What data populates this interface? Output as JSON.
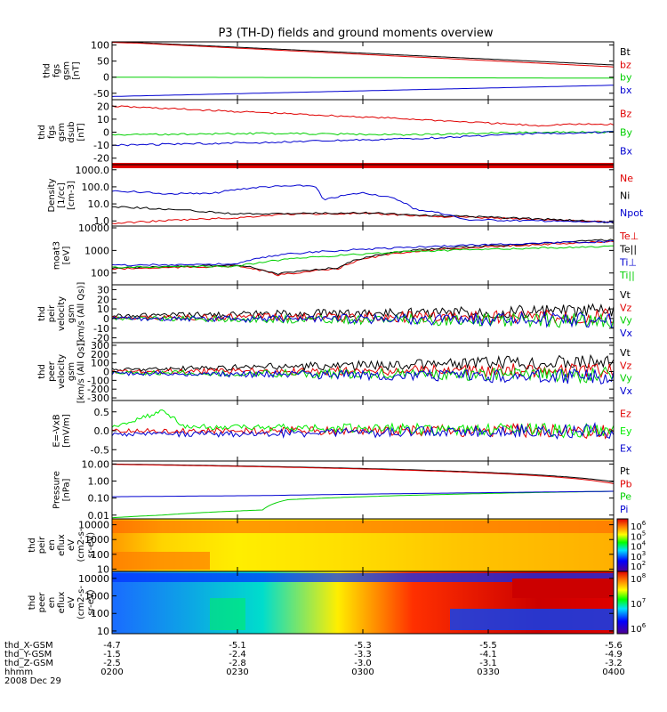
{
  "title": "P3 (TH-D) fields and ground moments overview",
  "time_axis": {
    "start": "0200",
    "end": "0400",
    "date": "2008 Dec 29",
    "tick_labels": [
      "0200",
      "0230",
      "0300",
      "0330",
      "0400"
    ],
    "rows": [
      {
        "label": "thd_X-GSM",
        "values": [
          "-4.7",
          "-5.1",
          "-5.3",
          "-5.5",
          "-5.6"
        ]
      },
      {
        "label": "thd_Y-GSM",
        "values": [
          "-1.5",
          "-2.4",
          "-3.3",
          "-4.1",
          "-4.9"
        ]
      },
      {
        "label": "thd_Z-GSM",
        "values": [
          "-2.5",
          "-2.8",
          "-3.0",
          "-3.1",
          "-3.2"
        ]
      },
      {
        "label": "hhmm",
        "values": []
      }
    ]
  },
  "colors": {
    "black": "#000000",
    "red": "#e00000",
    "green": "#00d000",
    "blue": "#0000d0",
    "lime": "#00ee00"
  },
  "chart_data": [
    {
      "type": "line",
      "ylabel": "thd\nfgs\ngsm\n[nT]",
      "ylim": [
        -70,
        110
      ],
      "yticks": [
        100,
        50,
        0,
        -50
      ],
      "legend": [
        "Bt",
        "bz",
        "by",
        "bx"
      ],
      "series": [
        {
          "name": "Bt",
          "color": "black",
          "x": [
            0,
            0.05,
            1
          ],
          "y": [
            110,
            108,
            38
          ]
        },
        {
          "name": "bz",
          "color": "red",
          "x": [
            0,
            0.05,
            1
          ],
          "y": [
            108,
            106,
            32
          ]
        },
        {
          "name": "by",
          "color": "green",
          "x": [
            0,
            1
          ],
          "y": [
            0,
            -3
          ]
        },
        {
          "name": "bx",
          "color": "blue",
          "x": [
            0,
            1
          ],
          "y": [
            -60,
            -25
          ]
        }
      ]
    },
    {
      "type": "line",
      "ylabel": "thd\nfgs\ngsm\ndsub\n[nT]",
      "ylim": [
        -25,
        25
      ],
      "yticks": [
        20,
        10,
        0,
        -10,
        -20
      ],
      "legend": [
        "Bz",
        "By",
        "Bx"
      ],
      "series": [
        {
          "name": "Bz",
          "color": "red",
          "x": [
            0,
            0.3,
            0.6,
            0.85,
            0.9,
            1
          ],
          "y": [
            20,
            15,
            10,
            5,
            6,
            6
          ]
        },
        {
          "name": "By",
          "color": "green",
          "x": [
            0,
            0.3,
            0.6,
            0.85,
            1
          ],
          "y": [
            -2,
            -1,
            -2,
            0,
            0
          ]
        },
        {
          "name": "Bx",
          "color": "blue",
          "x": [
            0,
            0.3,
            0.6,
            0.85,
            1
          ],
          "y": [
            -10,
            -8,
            -5,
            -1,
            0
          ]
        }
      ]
    },
    {
      "type": "line",
      "ylabel": "Density\n[1/cc]\n[cm-3]",
      "scale": "log",
      "ylim": [
        0.5,
        2000
      ],
      "ytick_labels": [
        "1000.0",
        "100.0",
        "10.0",
        "1.0"
      ],
      "ytick_values": [
        1000,
        100,
        10,
        1
      ],
      "legend": [
        "Ne",
        "Ni",
        "Npot"
      ],
      "series": [
        {
          "name": "Ne",
          "color": "red",
          "x": [
            0,
            0.25,
            0.35,
            0.5,
            0.65,
            1
          ],
          "y": [
            0.7,
            1.5,
            2.5,
            2.7,
            1.8,
            0.8
          ]
        },
        {
          "name": "Ni",
          "color": "black",
          "x": [
            0,
            0.1,
            0.25,
            0.5,
            0.65,
            1
          ],
          "y": [
            7,
            5,
            2.5,
            3,
            2,
            0.8
          ]
        },
        {
          "name": "Npot",
          "color": "blue",
          "x": [
            0,
            0.1,
            0.2,
            0.3,
            0.4,
            0.42,
            0.5,
            0.55,
            0.6,
            0.7,
            1
          ],
          "y": [
            60,
            40,
            40,
            100,
            120,
            15,
            45,
            25,
            5,
            1.2,
            0.8
          ]
        }
      ]
    },
    {
      "type": "line",
      "ylabel": "moat3\n[eV]",
      "scale": "log",
      "ylim": [
        30,
        12000
      ],
      "ytick_labels": [
        "10000",
        "1000",
        "100"
      ],
      "ytick_values": [
        10000,
        1000,
        100
      ],
      "legend": [
        "Te⊥",
        "Te||",
        "Ti⊥",
        "Ti||"
      ],
      "series": [
        {
          "name": "Te⊥",
          "color": "red",
          "x": [
            0,
            0.25,
            0.33,
            0.45,
            0.6,
            0.85,
            1
          ],
          "y": [
            150,
            200,
            80,
            150,
            900,
            1800,
            2500
          ]
        },
        {
          "name": "Te||",
          "color": "black",
          "x": [
            0,
            0.25,
            0.33,
            0.45,
            0.6,
            0.85,
            1
          ],
          "y": [
            170,
            220,
            90,
            170,
            1000,
            2000,
            3000
          ]
        },
        {
          "name": "Ti⊥",
          "color": "blue",
          "x": [
            0,
            0.25,
            0.35,
            0.6,
            1
          ],
          "y": [
            220,
            250,
            700,
            1400,
            2500
          ]
        },
        {
          "name": "Ti||",
          "color": "green",
          "x": [
            0,
            0.25,
            0.35,
            0.6,
            1
          ],
          "y": [
            180,
            200,
            400,
            900,
            1500
          ]
        }
      ]
    },
    {
      "type": "line",
      "ylabel": "thd\npeir\nvelocity\ngsm\n[km/s (All Qs)]",
      "ylim": [
        -25,
        35
      ],
      "yticks": [
        30,
        20,
        10,
        0,
        -10,
        -20
      ],
      "legend": [
        "Vt",
        "Vz",
        "Vy",
        "Vx"
      ],
      "series": [
        {
          "name": "Vt",
          "color": "black",
          "x": [
            0,
            1
          ],
          "y": [
            3,
            8
          ]
        },
        {
          "name": "Vz",
          "color": "red",
          "x": [
            0,
            1
          ],
          "y": [
            1,
            2
          ]
        },
        {
          "name": "Vy",
          "color": "green",
          "x": [
            0,
            1
          ],
          "y": [
            0,
            -2
          ]
        },
        {
          "name": "Vx",
          "color": "blue",
          "x": [
            0,
            1
          ],
          "y": [
            0,
            -1
          ]
        }
      ]
    },
    {
      "type": "line",
      "ylabel": "thd\npeer\nvelocity\ngsm\n[km/s (All Qs)]",
      "ylim": [
        -330,
        330
      ],
      "yticks": [
        300,
        200,
        100,
        0,
        -100,
        -200,
        -300
      ],
      "legend": [
        "Vt",
        "Vz",
        "Vy",
        "Vx"
      ],
      "series": [
        {
          "name": "Vt",
          "color": "black",
          "x": [
            0,
            1
          ],
          "y": [
            20,
            120
          ]
        },
        {
          "name": "Vz",
          "color": "red",
          "x": [
            0,
            1
          ],
          "y": [
            0,
            20
          ]
        },
        {
          "name": "Vy",
          "color": "green",
          "x": [
            0,
            1
          ],
          "y": [
            -10,
            -40
          ]
        },
        {
          "name": "Vx",
          "color": "blue",
          "x": [
            0,
            1
          ],
          "y": [
            -20,
            -60
          ]
        }
      ]
    },
    {
      "type": "line",
      "ylabel": "E=-VxB\n[mV/m]",
      "ylim": [
        -0.8,
        0.8
      ],
      "yticks": [
        0.5,
        0.0,
        -0.5
      ],
      "ytick_labels": [
        "0.5",
        "0.0",
        "-0.5"
      ],
      "legend": [
        "Ez",
        "Ey",
        "Ex"
      ],
      "series": [
        {
          "name": "Ez",
          "color": "red",
          "x": [
            0,
            1
          ],
          "y": [
            0,
            0
          ]
        },
        {
          "name": "Ey",
          "color": "lime",
          "x": [
            0,
            0.1,
            0.15,
            1
          ],
          "y": [
            0.1,
            0.5,
            0.1,
            0
          ]
        },
        {
          "name": "Ex",
          "color": "blue",
          "x": [
            0,
            1
          ],
          "y": [
            -0.1,
            0
          ]
        }
      ]
    },
    {
      "type": "line",
      "ylabel": "Pressure\n[nPa]",
      "scale": "log",
      "ylim": [
        0.006,
        15
      ],
      "ytick_labels": [
        "10.00",
        "1.00",
        "0.10",
        "0.01"
      ],
      "ytick_values": [
        10,
        1,
        0.1,
        0.01
      ],
      "legend": [
        "Pt",
        "Pb",
        "Pe",
        "Pi"
      ],
      "series": [
        {
          "name": "Pt",
          "color": "black",
          "x": [
            0,
            1
          ],
          "y": [
            10,
            0.9
          ]
        },
        {
          "name": "Pb",
          "color": "red",
          "x": [
            0,
            1
          ],
          "y": [
            9.5,
            0.7
          ]
        },
        {
          "name": "Pe",
          "color": "green",
          "x": [
            0,
            0.1,
            0.3,
            0.35,
            0.5,
            0.8,
            1
          ],
          "y": [
            0.007,
            0.01,
            0.02,
            0.08,
            0.12,
            0.2,
            0.25
          ]
        },
        {
          "name": "Pi",
          "color": "blue",
          "x": [
            0,
            0.3,
            0.5,
            0.7,
            1
          ],
          "y": [
            0.12,
            0.14,
            0.17,
            0.2,
            0.25
          ]
        }
      ]
    },
    {
      "type": "heatmap",
      "ylabel": "thd\npeir\nen\neflux\neV\n(cm2-s-\nsr-eV)",
      "scale": "log",
      "ylim": [
        7,
        25000
      ],
      "ytick_labels": [
        "10000",
        "1000",
        "100",
        "10"
      ],
      "ytick_values": [
        10000,
        1000,
        100,
        10
      ],
      "colorbar_labels": [
        "10^6",
        "10^5",
        "10^4",
        "10^3",
        "10^2"
      ]
    },
    {
      "type": "heatmap",
      "ylabel": "thd\npeer\nen\neflux\neV\n(cm2-s-\nsr-eV)",
      "scale": "log",
      "ylim": [
        7,
        25000
      ],
      "ytick_labels": [
        "10000",
        "1000",
        "100",
        "10"
      ],
      "ytick_values": [
        10000,
        1000,
        100,
        10
      ],
      "colorbar_labels": [
        "10^8",
        "10^7",
        "10^6"
      ]
    }
  ]
}
